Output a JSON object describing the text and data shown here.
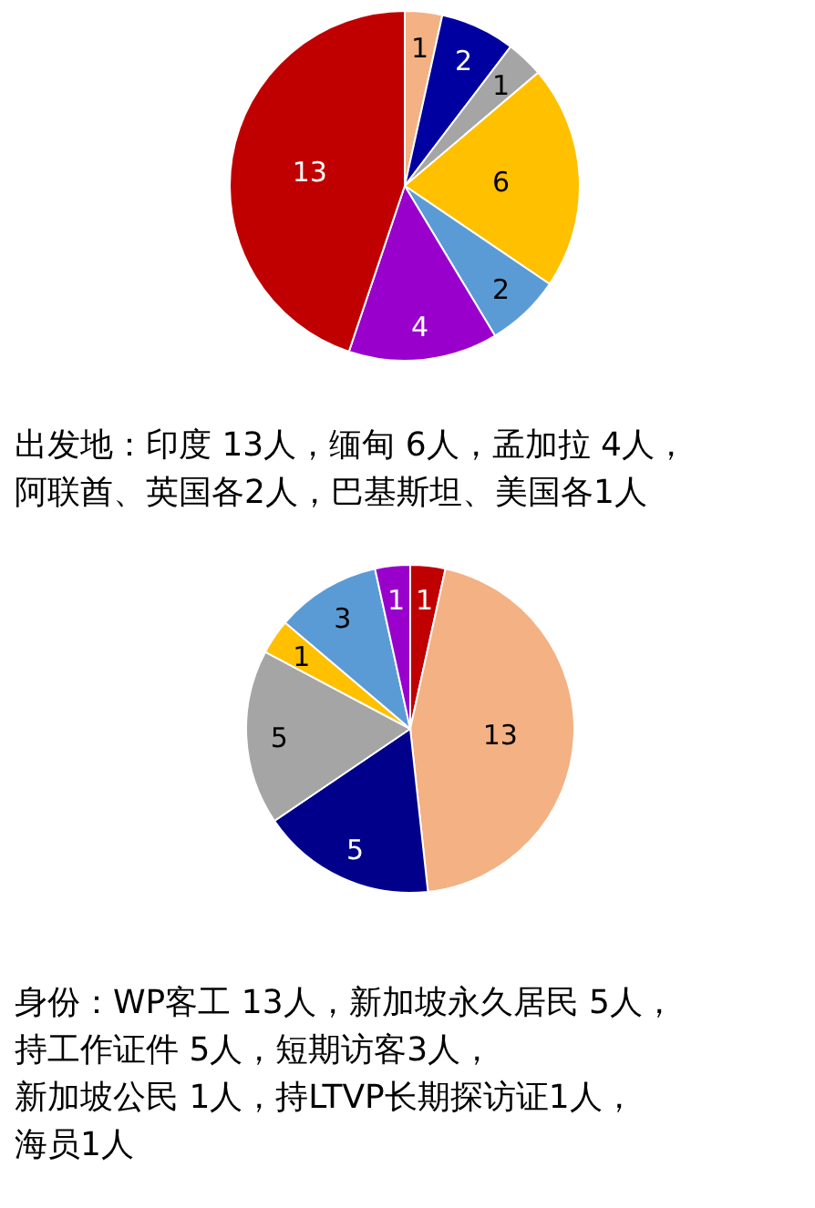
{
  "chart_data": [
    {
      "type": "pie",
      "categories": [
        null,
        null,
        null,
        null,
        null,
        null,
        null
      ],
      "values": [
        1,
        2,
        1,
        6,
        2,
        4,
        13
      ],
      "colors": [
        "#f4b183",
        "#0000a0",
        "#a5a5a5",
        "#ffc000",
        "#5b9bd5",
        "#9900cc",
        "#c00000"
      ],
      "data_labels": true,
      "annotations": [
        "出发地：印度 13人，缅甸 6人，孟加拉 4人，",
        "阿联酋、英国各2人，巴基斯坦、美国各1人"
      ]
    },
    {
      "type": "pie",
      "categories": [
        null,
        null,
        null,
        null,
        null,
        null,
        null
      ],
      "values": [
        1,
        13,
        5,
        5,
        1,
        3,
        1
      ],
      "colors": [
        "#c00000",
        "#f4b183",
        "#00008b",
        "#a5a5a5",
        "#ffc000",
        "#5b9bd5",
        "#9900cc"
      ],
      "data_labels": true,
      "annotations": [
        "身份：WP客工 13人，新加坡永久居民 5人，",
        "持工作证件 5人，短期访客3人，",
        "新加坡公民 1人，持LTVP长期探访证1人，",
        "海员1人"
      ]
    }
  ]
}
